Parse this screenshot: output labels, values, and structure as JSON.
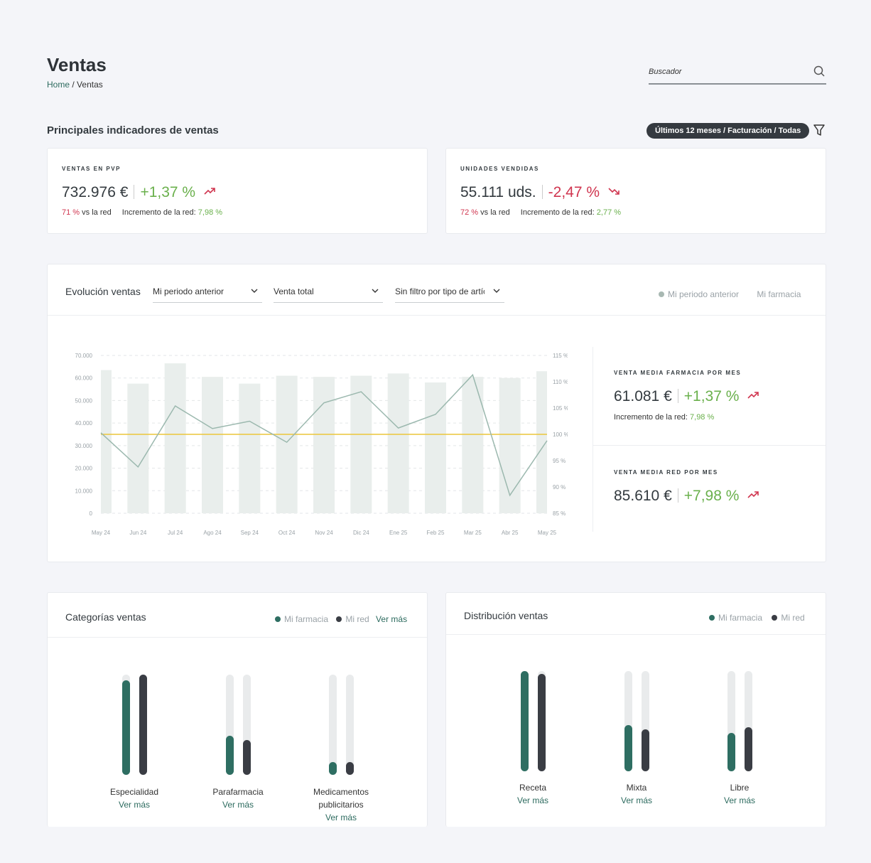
{
  "header": {
    "title": "Ventas",
    "breadcrumb_home": "Home",
    "breadcrumb_sep": "/",
    "breadcrumb_current": "Ventas"
  },
  "search": {
    "placeholder": "Buscador",
    "icon": "search-icon"
  },
  "indicators": {
    "title": "Principales indicadores de ventas",
    "filter_label": "Últimos 12 meses / Facturación / Todas",
    "filter_icon": "funnel-icon"
  },
  "kpi_sales": {
    "label": "VENTAS EN PVP",
    "value": "732.976 €",
    "pct": "+1,37 %",
    "trend": "up",
    "share": "71 %",
    "share_text": "vs la red",
    "network_label": "Incremento de la red:",
    "network_value": "7,98 %"
  },
  "kpi_units": {
    "label": "UNIDADES VENDIDAS",
    "value": "55.111 uds.",
    "pct": "-2,47 %",
    "trend": "down",
    "share": "72 %",
    "share_text": "vs la red",
    "network_label": "Incremento de la red:",
    "network_value": "2,77 %"
  },
  "evolution": {
    "title": "Evolución ventas",
    "select_period": "Mi periodo anterior",
    "select_type": "Venta total",
    "select_filter": "Sin filtro por tipo de artíc",
    "legend_prev": "Mi periodo anterior",
    "legend_mine": "Mi farmacia",
    "legend_prev_color": "#a8b8b2"
  },
  "chart_data": {
    "type": "bar",
    "categories": [
      "May 24",
      "Jun 24",
      "Jul 24",
      "Ago 24",
      "Sep 24",
      "Oct 24",
      "Nov 24",
      "Dic 24",
      "Ene 25",
      "Feb 25",
      "Mar 25",
      "Abr 25",
      "May 25"
    ],
    "series": [
      {
        "values": [
          63500,
          57500,
          66500,
          60500,
          57500,
          61000,
          60500,
          61000,
          62000,
          58000,
          60500,
          60000,
          63000
        ]
      },
      {
        "axis": "right",
        "values": [
          100.3,
          93.8,
          105.4,
          101.1,
          102.5,
          98.5,
          106.0,
          108.1,
          101.2,
          103.8,
          111.3,
          88.4,
          98.8
        ]
      },
      {
        "axis": "right",
        "values": [
          100,
          100,
          100,
          100,
          100,
          100,
          100,
          100,
          100,
          100,
          100,
          100,
          100
        ]
      }
    ],
    "ylim": [
      0,
      70000
    ],
    "yticks": [
      "0",
      "10.000",
      "20.000",
      "30.000",
      "40.000",
      "50.000",
      "60.000",
      "70.000"
    ],
    "y2lim": [
      85,
      115
    ],
    "y2ticks": [
      "85 %",
      "90 %",
      "95 %",
      "100 %",
      "105 %",
      "110 %",
      "115 %"
    ],
    "colors": {
      "bars": "#e9eeec",
      "line": "#9bb8ae",
      "reference": "#ecc63a"
    },
    "grid": true
  },
  "avg_pharmacy": {
    "label": "VENTA MEDIA FARMACIA POR MES",
    "value": "61.081 €",
    "pct": "+1,37 %",
    "network_label": "Incremento de la red:",
    "network_value": "7,98 %"
  },
  "avg_network": {
    "label": "VENTA MEDIA RED POR MES",
    "value": "85.610 €",
    "pct": "+7,98 %"
  },
  "categories_card": {
    "title": "Categorías ventas",
    "legend_mine": "Mi farmacia",
    "legend_net": "Mi red",
    "more": "Ver más",
    "items": [
      {
        "label": "Especialidad",
        "mine": 0.94,
        "net": 1.0,
        "more": "Ver más"
      },
      {
        "label": "Parafarmacia",
        "mine": 0.39,
        "net": 0.35,
        "more": "Ver más"
      },
      {
        "label": "Medicamentos publicitarios",
        "mine": 0.13,
        "net": 0.12,
        "more": "Ver más"
      }
    ]
  },
  "distribution_card": {
    "title": "Distribución ventas",
    "legend_mine": "Mi farmacia",
    "legend_net": "Mi red",
    "items": [
      {
        "label": "Receta",
        "mine": 1.0,
        "net": 0.97,
        "more": "Ver más"
      },
      {
        "label": "Mixta",
        "mine": 0.46,
        "net": 0.42,
        "more": "Ver más"
      },
      {
        "label": "Libre",
        "mine": 0.38,
        "net": 0.44,
        "more": "Ver más"
      }
    ]
  },
  "colors": {
    "mine": "#2e6e62",
    "net": "#3a3d44",
    "track": "#e9ebec",
    "accent": "#2d6b5f",
    "up": "#6ab04c",
    "down": "#d0354f",
    "trend_icon": "#d0354f"
  }
}
